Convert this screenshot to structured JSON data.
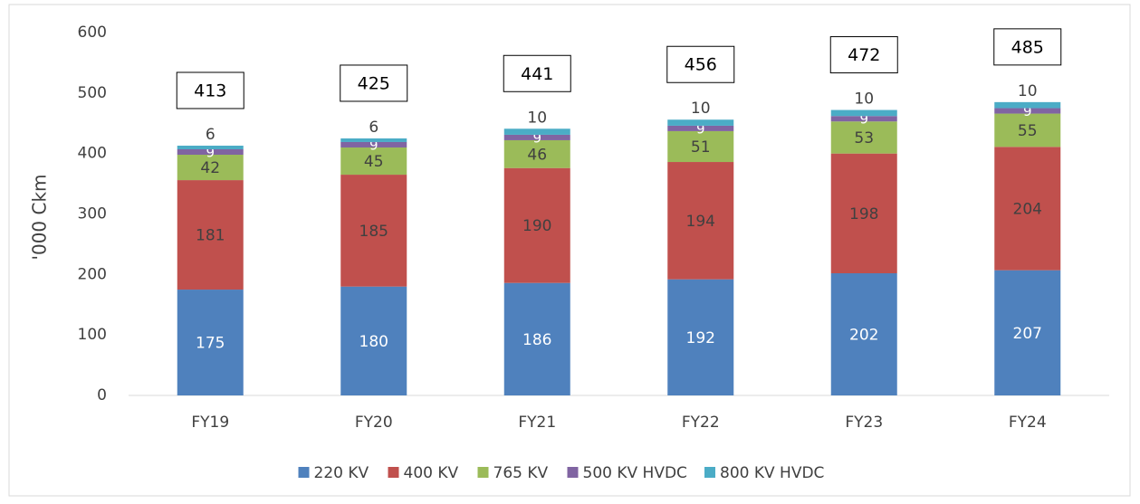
{
  "chart_data": {
    "type": "stacked_bar",
    "y_label": "'000 Ckm",
    "categories": [
      "FY19",
      "FY20",
      "FY21",
      "FY22",
      "FY23",
      "FY24"
    ],
    "series": [
      {
        "name": "220 KV",
        "color": "#4f81bd",
        "values": [
          175,
          180,
          186,
          192,
          202,
          207
        ]
      },
      {
        "name": "400 KV",
        "color": "#c0504d",
        "values": [
          181,
          185,
          190,
          194,
          198,
          204
        ]
      },
      {
        "name": "765 KV",
        "color": "#9bbb59",
        "values": [
          42,
          45,
          46,
          51,
          53,
          55
        ]
      },
      {
        "name": "500 KV HVDC",
        "color": "#8064a2",
        "values": [
          9,
          9,
          9,
          9,
          9,
          9
        ]
      },
      {
        "name": "800 KV HVDC",
        "color": "#4bacc6",
        "values": [
          6,
          6,
          10,
          10,
          10,
          10
        ]
      }
    ],
    "totals": [
      413,
      425,
      441,
      456,
      472,
      485
    ],
    "ylim": [
      0,
      600
    ],
    "yticks": [
      0,
      100,
      200,
      300,
      400,
      500,
      600
    ],
    "grid": false,
    "legend": "bottom"
  }
}
